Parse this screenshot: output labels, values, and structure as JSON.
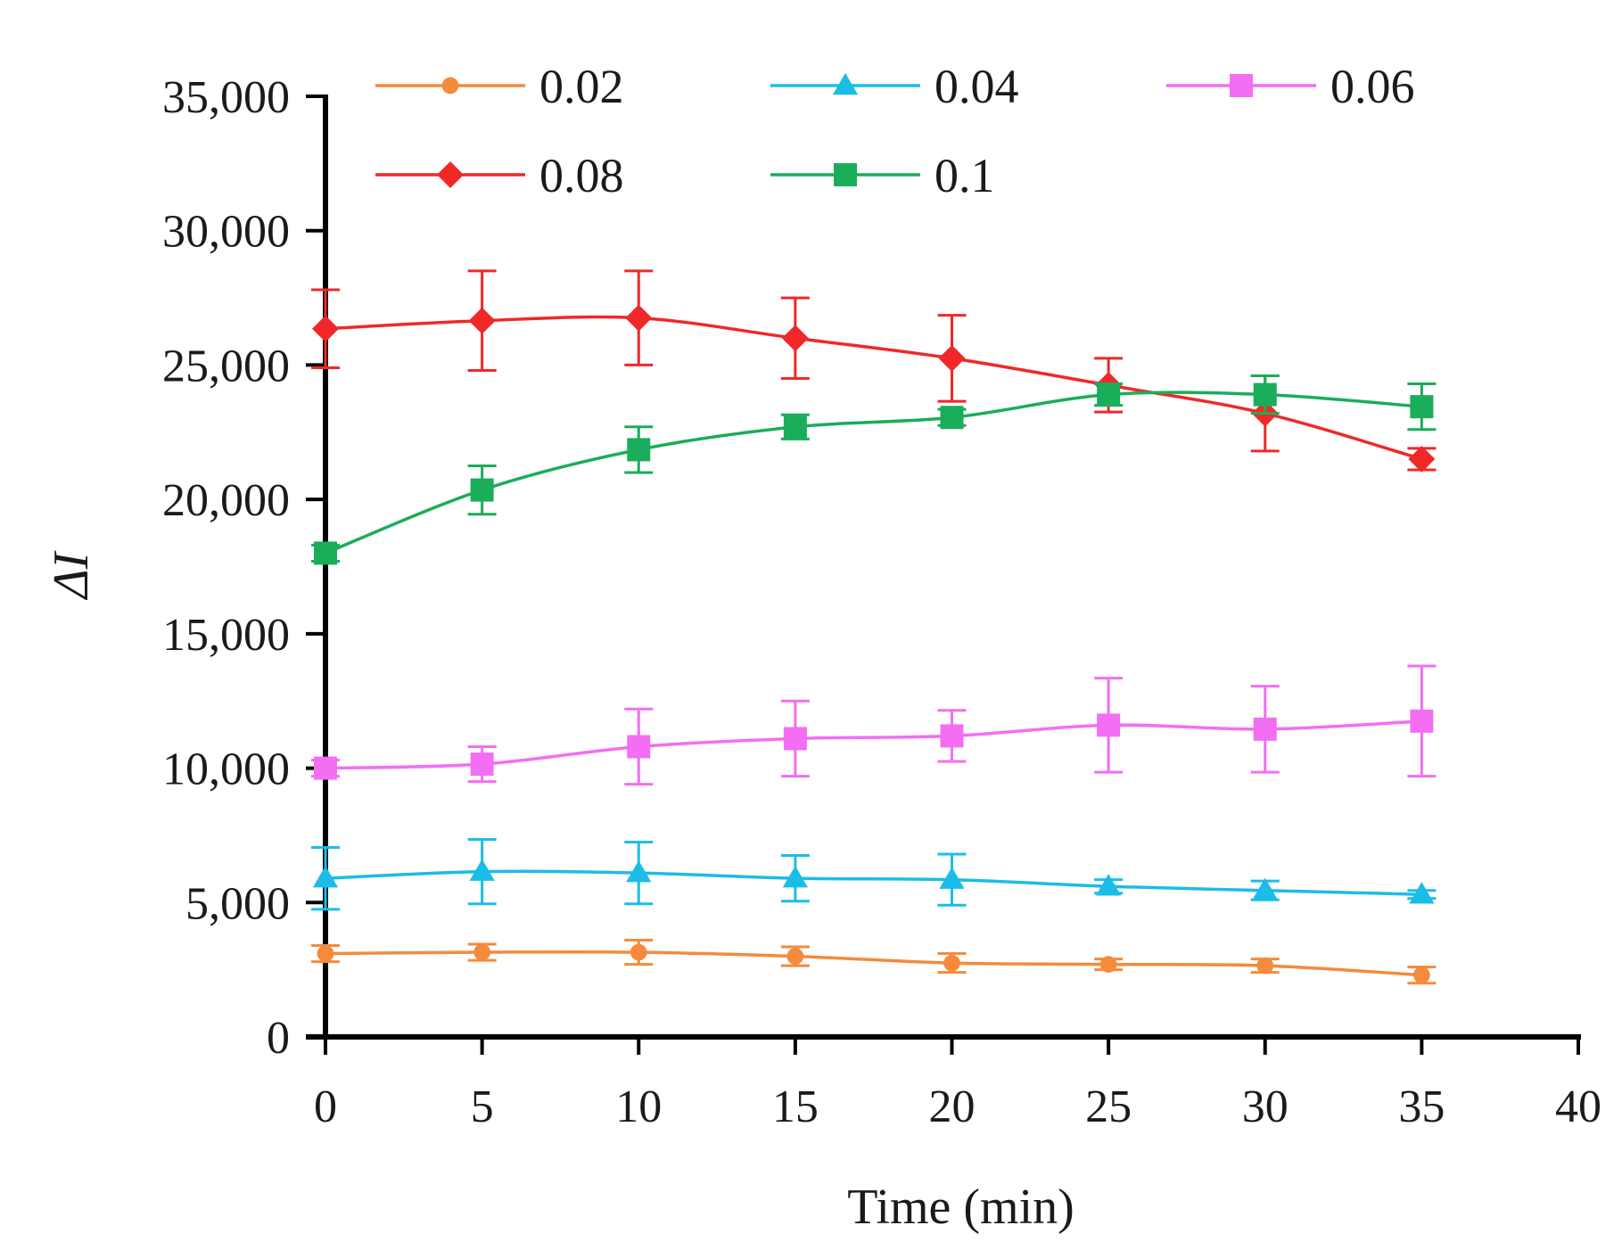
{
  "chart_data": {
    "type": "line",
    "title": "",
    "xlabel": "Time (min)",
    "ylabel": "ΔI",
    "xlim": [
      0,
      40
    ],
    "ylim": [
      0,
      35000
    ],
    "xticks": [
      0,
      5,
      10,
      15,
      20,
      25,
      30,
      35,
      40
    ],
    "xtick_labels": [
      "0",
      "5",
      "10",
      "15",
      "20",
      "25",
      "30",
      "35",
      "40"
    ],
    "yticks": [
      0,
      5000,
      10000,
      15000,
      20000,
      25000,
      30000,
      35000
    ],
    "ytick_labels": [
      "0",
      "5,000",
      "10,000",
      "15,000",
      "20,000",
      "25,000",
      "30,000",
      "35,000"
    ],
    "grid": false,
    "legend": "top",
    "x": [
      0,
      5,
      10,
      15,
      20,
      25,
      30,
      35
    ],
    "series": [
      {
        "name": "0.02",
        "color": "#f58a3c",
        "marker": "circle",
        "values": [
          3100,
          3150,
          3150,
          3000,
          2750,
          2700,
          2650,
          2300
        ],
        "errors": [
          300,
          300,
          450,
          350,
          350,
          200,
          250,
          300
        ]
      },
      {
        "name": "0.04",
        "color": "#1bbde8",
        "marker": "triangle",
        "values": [
          5900,
          6150,
          6100,
          5900,
          5850,
          5600,
          5450,
          5300
        ],
        "errors": [
          1150,
          1200,
          1150,
          850,
          950,
          250,
          350,
          150
        ]
      },
      {
        "name": "0.06",
        "color": "#f36ef3",
        "marker": "square",
        "values": [
          10000,
          10150,
          10800,
          11100,
          11200,
          11600,
          11450,
          11750
        ],
        "errors": [
          300,
          650,
          1400,
          1400,
          950,
          1750,
          1600,
          2050
        ]
      },
      {
        "name": "0.08",
        "color": "#f02828",
        "marker": "diamond",
        "values": [
          26350,
          26650,
          26750,
          26000,
          25250,
          24250,
          23200,
          21500
        ],
        "errors": [
          1450,
          1850,
          1750,
          1500,
          1600,
          1000,
          1400,
          400
        ]
      },
      {
        "name": "0.1",
        "color": "#1aad5a",
        "marker": "square",
        "values": [
          18000,
          20350,
          21850,
          22700,
          23050,
          23900,
          23900,
          23450
        ],
        "errors": [
          300,
          900,
          850,
          450,
          300,
          400,
          700,
          850
        ]
      }
    ]
  }
}
